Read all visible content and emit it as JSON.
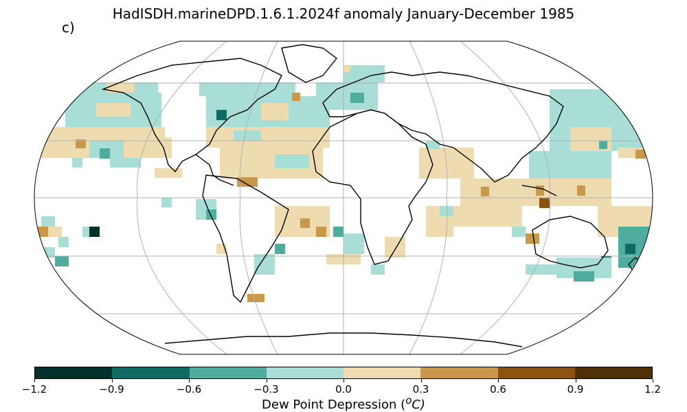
{
  "title": "HadISDH.marineDPD.1.6.1.2024f anomaly January-December 1985",
  "panel_label": "c)",
  "colorbar": {
    "label_prefix": "Dew Point Depression (",
    "label_sup": "o",
    "label_suffix": "C)",
    "ticks": [
      "−1.2",
      "−0.9",
      "−0.6",
      "−0.3",
      "0.0",
      "0.3",
      "0.6",
      "0.9",
      "1.2"
    ],
    "colors": [
      "#01332c",
      "#0d6d64",
      "#4fada0",
      "#a9ded6",
      "#efdbb0",
      "#c9984b",
      "#8c530f",
      "#4f3006"
    ]
  },
  "icons": [
    "map-projection-outline",
    "graticule",
    "coastlines"
  ]
}
